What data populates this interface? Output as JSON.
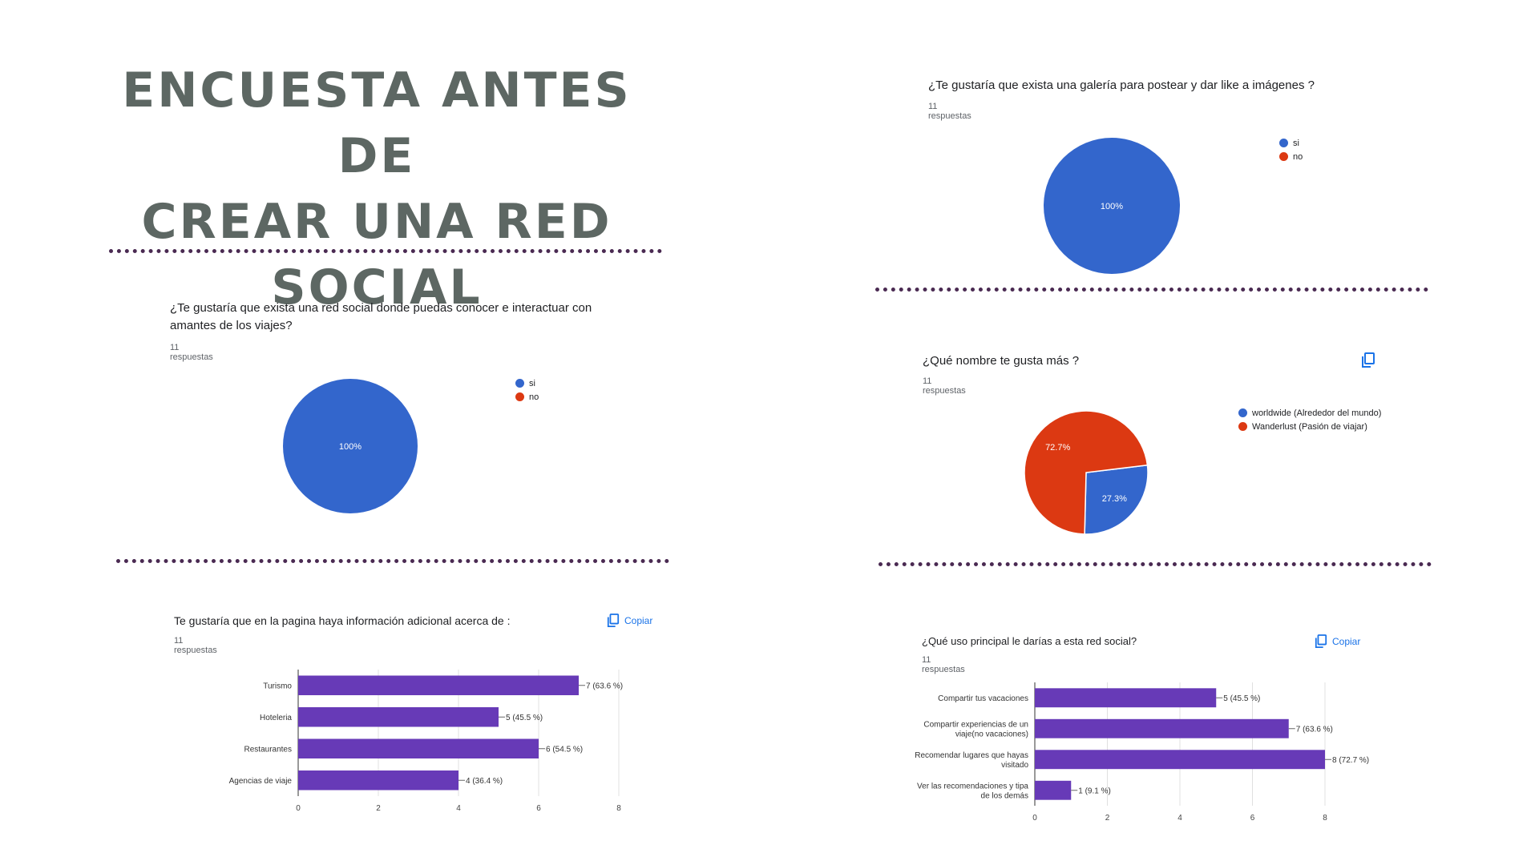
{
  "title_line1": "Encuesta antes de",
  "title_line2": "crear una red social",
  "copy_label": "Copiar",
  "chart_data": [
    {
      "type": "pie",
      "title": "¿Te gustaría  que exista una red social donde puedas conocer e interactuar con amantes de los viajes?",
      "responses": "11 respuestas",
      "labels": [
        "si",
        "no"
      ],
      "values": [
        100,
        0
      ],
      "data_labels": [
        "100%",
        ""
      ],
      "colors": [
        "#3366cc",
        "#dc3912"
      ],
      "legend": "right"
    },
    {
      "type": "pie",
      "title": "¿Te gustaría que exista una galería para postear y dar like  a  imágenes  ?",
      "responses": "11 respuestas",
      "labels": [
        "si",
        "no"
      ],
      "values": [
        100,
        0
      ],
      "data_labels": [
        "100%",
        ""
      ],
      "colors": [
        "#3366cc",
        "#dc3912"
      ],
      "legend": "right"
    },
    {
      "type": "pie",
      "title": "¿Qué nombre te gusta más ?",
      "responses": "11 respuestas",
      "labels": [
        "worldwide (Alrededor del mundo)",
        "Wanderlust (Pasión de viajar)"
      ],
      "values": [
        27.3,
        72.7
      ],
      "data_labels": [
        "27.3%",
        "72.7%"
      ],
      "colors": [
        "#3366cc",
        "#dc3912"
      ],
      "legend": "right"
    },
    {
      "type": "bar",
      "orientation": "horizontal",
      "title": "Te gustaría que en la pagina haya información adicional acerca de :",
      "responses": "11 respuestas",
      "categories": [
        "Turismo",
        "Hoteleria",
        "Restaurantes",
        "Agencias de viaje"
      ],
      "values": [
        7,
        5,
        6,
        4
      ],
      "data_labels": [
        "7 (63.6 %)",
        "5 (45.5 %)",
        "6 (54.5 %)",
        "4 (36.4 %)"
      ],
      "xticks": [
        "0",
        "2",
        "4",
        "6",
        "8"
      ],
      "xlim": [
        0,
        8
      ],
      "color": "#673ab7"
    },
    {
      "type": "bar",
      "orientation": "horizontal",
      "title": "¿Qué uso principal le darías a esta red social?",
      "responses": "11 respuestas",
      "categories": [
        [
          "Compartir tus vacaciones"
        ],
        [
          "Compartir experiencias de un",
          "viaje(no vacaciones)"
        ],
        [
          "Recomendar lugares que hayas",
          "visitado"
        ],
        [
          "Ver las recomendaciones y tipa",
          "de los demás"
        ]
      ],
      "values": [
        5,
        7,
        8,
        1
      ],
      "data_labels": [
        "5 (45.5 %)",
        "7 (63.6 %)",
        "8 (72.7 %)",
        "1 (9.1 %)"
      ],
      "xticks": [
        "0",
        "2",
        "4",
        "6",
        "8"
      ],
      "xlim": [
        0,
        8
      ],
      "color": "#673ab7"
    }
  ]
}
